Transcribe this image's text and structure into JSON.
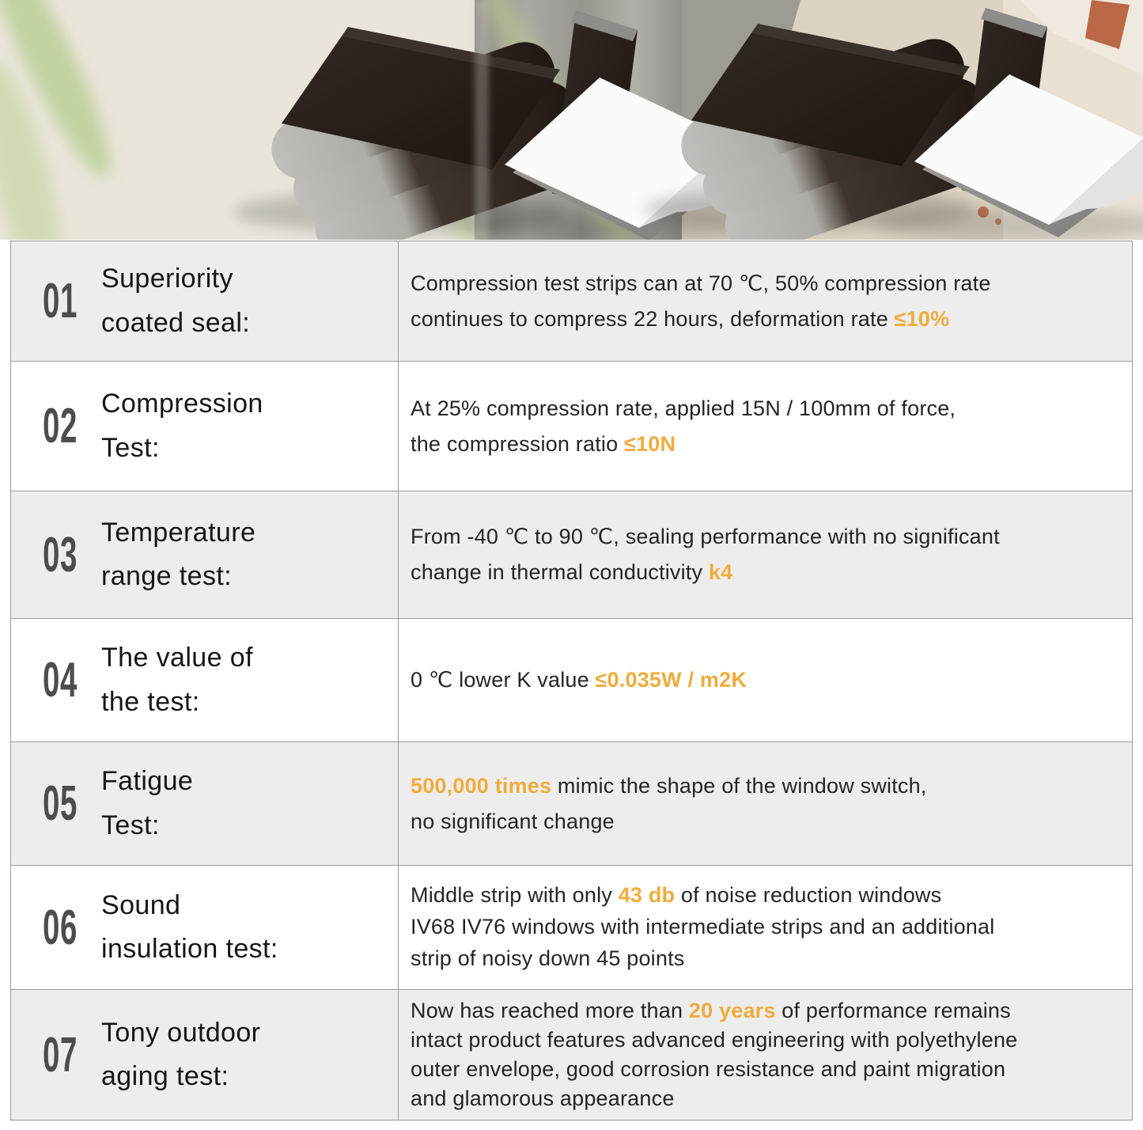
{
  "hero": {
    "scene": "two groups of black textured foam window seal strips, each a folded stack of three strips and one upright strip with a white self-adhesive backing sheet peeling off a grey felt back",
    "left_background": "cream wall with blurred green plant leaves and a grey pillar",
    "right_background": "beige plastered wall with grey patch and red paint chips"
  },
  "colors": {
    "accent": "#EFAC3C",
    "row_alt_bg": "#EDEDED",
    "row_bg": "#FFFFFF",
    "border": "#9B9B9B",
    "number": "#4D4D4D",
    "title_text": "#161616",
    "desc_text": "#242424",
    "foam_dark": "#261D19",
    "foam_edge": "#B6B4B0"
  },
  "table": {
    "rows": [
      {
        "number": "01",
        "title": "Superiority\ncoated seal:",
        "desc": [
          {
            "text": "Compression test strips can at 70 ℃, 50% compression rate\ncontinues to compress 22 hours, deformation rate ",
            "highlight": false
          },
          {
            "text": "≤10%",
            "highlight": true
          }
        ]
      },
      {
        "number": "02",
        "title": "Compression\nTest:",
        "desc": [
          {
            "text": "At 25% compression rate, applied 15N / 100mm of force,\nthe compression ratio ",
            "highlight": false
          },
          {
            "text": "≤10N",
            "highlight": true
          }
        ]
      },
      {
        "number": "03",
        "title": "Temperature\nrange test:",
        "desc": [
          {
            "text": "From -40 ℃ to 90 ℃, sealing performance with no significant\nchange in thermal conductivity ",
            "highlight": false
          },
          {
            "text": "k4",
            "highlight": true
          }
        ]
      },
      {
        "number": "04",
        "title": "The value of\nthe test:",
        "desc": [
          {
            "text": "0 ℃ lower K value ",
            "highlight": false
          },
          {
            "text": "≤0.035W / m2K",
            "highlight": true
          }
        ]
      },
      {
        "number": "05",
        "title": "Fatigue\nTest:",
        "desc": [
          {
            "text": "500,000 times",
            "highlight": true
          },
          {
            "text": " mimic the shape of the window switch,\nno significant change",
            "highlight": false
          }
        ]
      },
      {
        "number": "06",
        "title": "Sound\ninsulation test:",
        "desc": [
          {
            "text": "Middle strip with only ",
            "highlight": false
          },
          {
            "text": "43 db",
            "highlight": true
          },
          {
            "text": " of noise reduction windows\nIV68 IV76 windows with intermediate strips and an additional\nstrip of noisy down 45 points",
            "highlight": false
          }
        ]
      },
      {
        "number": "07",
        "title": "Tony outdoor\naging test:",
        "desc": [
          {
            "text": "Now has reached more than ",
            "highlight": false
          },
          {
            "text": "20 years",
            "highlight": true
          },
          {
            "text": " of performance remains\nintact product features advanced engineering with polyethylene\nouter envelope, good corrosion resistance and paint migration\nand glamorous appearance",
            "highlight": false
          }
        ]
      }
    ]
  }
}
